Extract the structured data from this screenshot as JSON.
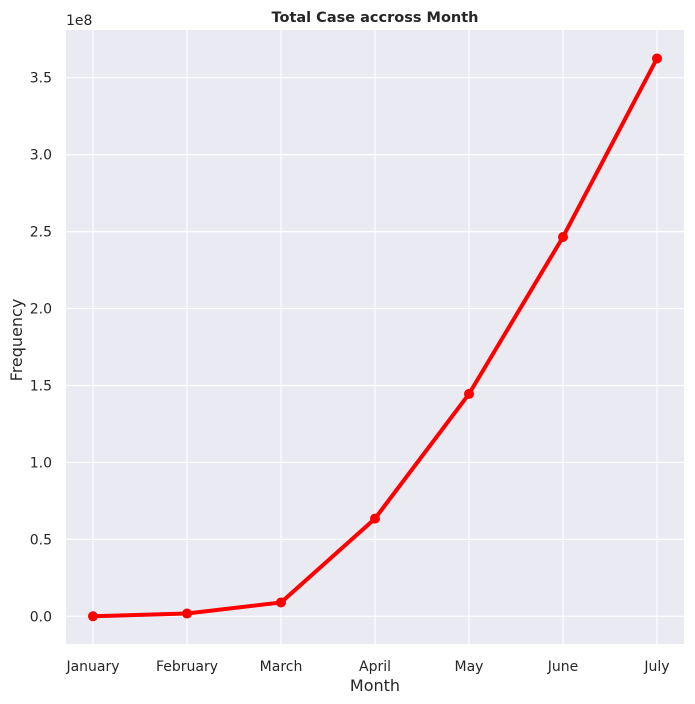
{
  "chart_data": {
    "type": "line",
    "title": "Total Case accross Month",
    "xlabel": "Month",
    "ylabel": "Frequency",
    "offset_label": "1e8",
    "categories": [
      "January",
      "February",
      "March",
      "April",
      "May",
      "June",
      "July"
    ],
    "series": [
      {
        "name": "Total Case",
        "color": "#ff0000",
        "values": [
          0.0,
          0.018,
          0.09,
          0.635,
          1.445,
          2.465,
          3.625
        ]
      }
    ],
    "yticks": [
      0.0,
      0.5,
      1.0,
      1.5,
      2.0,
      2.5,
      3.0,
      3.5
    ],
    "ytick_labels": [
      "0.0",
      "0.5",
      "1.0",
      "1.5",
      "2.0",
      "2.5",
      "3.0",
      "3.5"
    ],
    "ylim": [
      -0.18,
      3.81
    ],
    "grid": true,
    "background_color": "#eaeaf2",
    "grid_color": "#ffffff"
  }
}
